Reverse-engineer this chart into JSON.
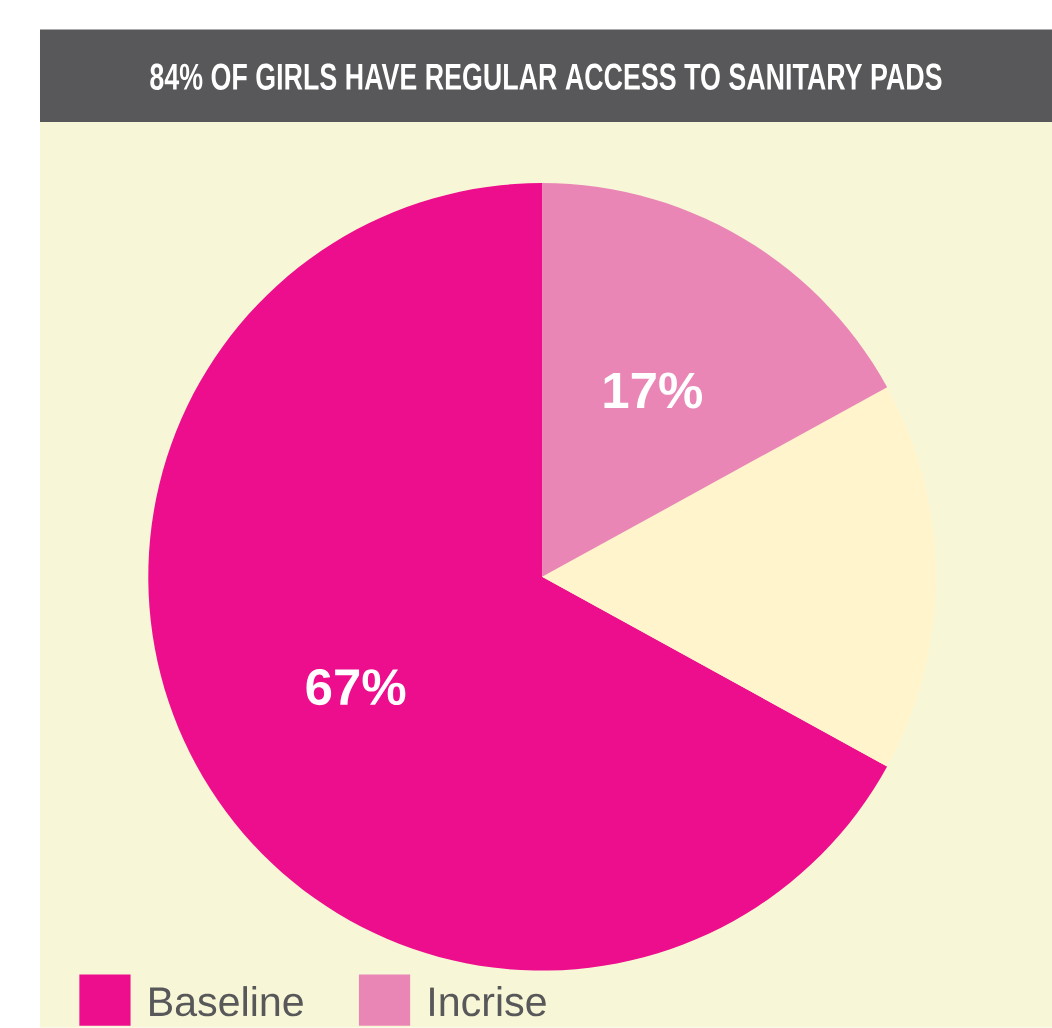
{
  "chart_data": {
    "type": "pie",
    "title": "84% OF GIRLS HAVE REGULAR ACCESS TO SANITARY PADS",
    "categories": [
      "Baseline",
      null,
      "Incrise"
    ],
    "values": [
      67,
      16,
      17
    ],
    "colors": [
      "#ec0e8c",
      "#fff4cc",
      "#ea86b6"
    ],
    "value_labels": [
      "67%",
      null,
      "17%"
    ],
    "legend": "bottom left"
  }
}
